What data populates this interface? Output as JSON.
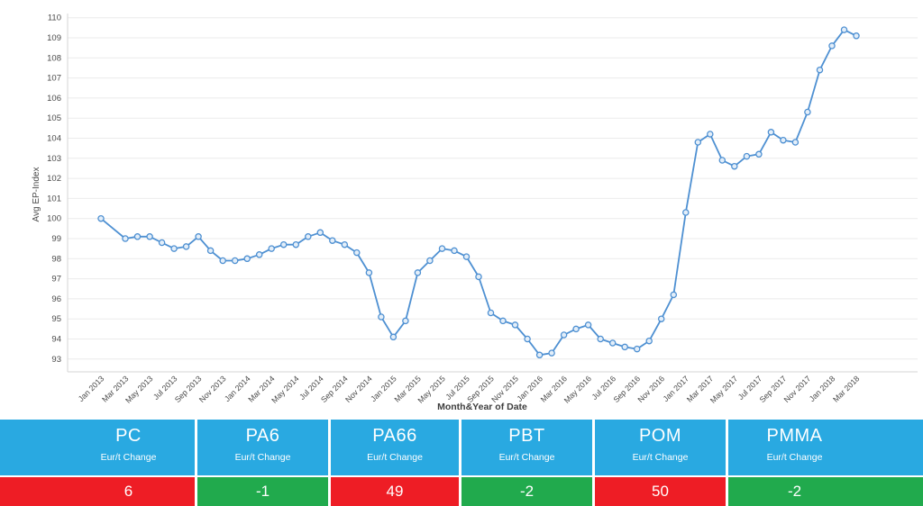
{
  "chart_data": {
    "type": "line",
    "title": "",
    "xlabel": "Month&Year of Date",
    "ylabel": "Avg EP-Index",
    "ylim": [
      93,
      110
    ],
    "grid": true,
    "legend": "none",
    "line_color": "#4E90D2",
    "marker_fill": "#E3EEF9",
    "grid_color": "#EBEBEB",
    "axis_line_color": "#D6D6D6",
    "tick_text_color": "#4A4A4A",
    "x": [
      "Jan 2013",
      "Feb 2013",
      "Mar 2013",
      "Apr 2013",
      "May 2013",
      "Jun 2013",
      "Jul 2013",
      "Aug 2013",
      "Sep 2013",
      "Oct 2013",
      "Nov 2013",
      "Dec 2013",
      "Jan 2014",
      "Feb 2014",
      "Mar 2014",
      "Apr 2014",
      "May 2014",
      "Jun 2014",
      "Jul 2014",
      "Aug 2014",
      "Sep 2014",
      "Oct 2014",
      "Nov 2014",
      "Dec 2014",
      "Jan 2015",
      "Feb 2015",
      "Mar 2015",
      "Apr 2015",
      "May 2015",
      "Jun 2015",
      "Jul 2015",
      "Aug 2015",
      "Sep 2015",
      "Oct 2015",
      "Nov 2015",
      "Dec 2015",
      "Jan 2016",
      "Feb 2016",
      "Mar 2016",
      "Apr 2016",
      "May 2016",
      "Jun 2016",
      "Jul 2016",
      "Aug 2016",
      "Sep 2016",
      "Oct 2016",
      "Nov 2016",
      "Dec 2016",
      "Jan 2017",
      "Feb 2017",
      "Mar 2017",
      "Apr 2017",
      "May 2017",
      "Jun 2017",
      "Jul 2017",
      "Aug 2017",
      "Sep 2017",
      "Oct 2017",
      "Nov 2017",
      "Dec 2017",
      "Jan 2018",
      "Feb 2018",
      "Mar 2018"
    ],
    "values": [
      100.0,
      null,
      99.0,
      99.1,
      99.1,
      98.8,
      98.5,
      98.6,
      99.1,
      98.4,
      97.9,
      97.9,
      98.0,
      98.2,
      98.5,
      98.7,
      98.7,
      99.1,
      99.3,
      98.9,
      98.7,
      98.3,
      97.3,
      95.1,
      94.1,
      94.9,
      97.3,
      97.9,
      98.5,
      98.4,
      98.1,
      97.1,
      95.3,
      94.9,
      94.7,
      94.0,
      93.2,
      93.3,
      94.2,
      94.5,
      94.7,
      94.0,
      93.8,
      93.6,
      93.5,
      93.9,
      95.0,
      96.2,
      100.3,
      103.8,
      104.2,
      102.9,
      102.6,
      103.1,
      103.2,
      104.3,
      103.9,
      103.8,
      105.3,
      107.4,
      108.6,
      109.4,
      109.1
    ],
    "y_tick_labels": [
      "110",
      "109",
      "108",
      "107",
      "106",
      "105",
      "104",
      "103",
      "102",
      "101",
      "100",
      "99",
      "98",
      "97",
      "96",
      "95",
      "94",
      "93"
    ],
    "x_tick_every": 2
  },
  "table": {
    "sub_label": "Eur/t Change",
    "header_bg": "#29A9E1",
    "red": "#EE1D25",
    "green": "#21AA4D",
    "columns": [
      {
        "name": "PC",
        "sub": "Eur/t Change",
        "value": "6",
        "value_bg": "#EE1D25"
      },
      {
        "name": "PA6",
        "sub": "Eur/t Change",
        "value": "-1",
        "value_bg": "#21AA4D"
      },
      {
        "name": "PA66",
        "sub": "Eur/t Change",
        "value": "49",
        "value_bg": "#EE1D25"
      },
      {
        "name": "PBT",
        "sub": "Eur/t Change",
        "value": "-2",
        "value_bg": "#21AA4D"
      },
      {
        "name": "POM",
        "sub": "Eur/t Change",
        "value": "50",
        "value_bg": "#EE1D25"
      },
      {
        "name": "PMMA",
        "sub": "Eur/t Change",
        "value": "-2",
        "value_bg": "#21AA4D"
      }
    ]
  }
}
